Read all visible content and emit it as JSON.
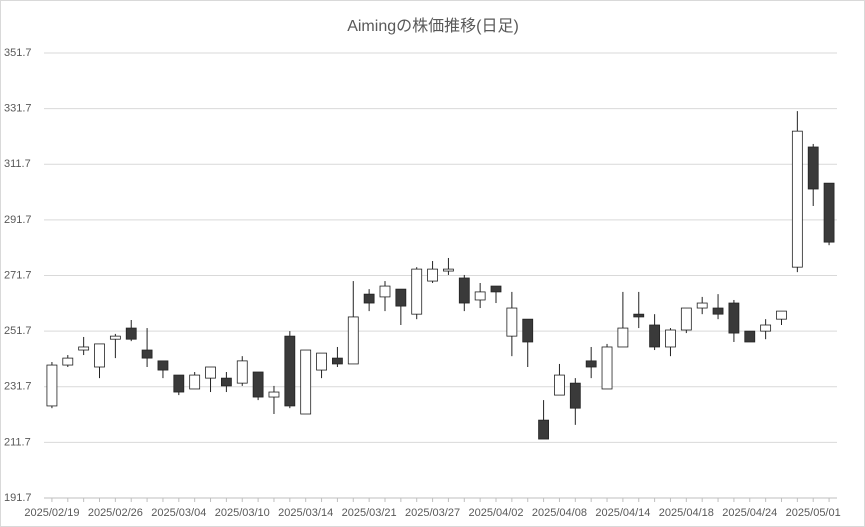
{
  "chart_data": {
    "type": "candlestick",
    "title": "Aimingの株価推移(日足)",
    "categories": [
      "2025/02/19",
      null,
      null,
      null,
      "2025/02/26",
      null,
      null,
      null,
      "2025/03/04",
      null,
      null,
      null,
      "2025/03/10",
      null,
      null,
      null,
      "2025/03/14",
      null,
      null,
      null,
      "2025/03/21",
      null,
      null,
      null,
      "2025/03/27",
      null,
      null,
      null,
      "2025/04/02",
      null,
      null,
      null,
      "2025/04/08",
      null,
      null,
      null,
      "2025/04/14",
      null,
      null,
      null,
      "2025/04/18",
      null,
      null,
      null,
      "2025/04/24",
      null,
      null,
      null,
      "2025/05/01",
      null
    ],
    "open": [
      224.8,
      239.5,
      244.9,
      238.8,
      248.8,
      252.8,
      244.9,
      241.0,
      235.9,
      230.9,
      234.8,
      234.8,
      233.0,
      237.0,
      228.0,
      249.9,
      221.9,
      237.7,
      242.0,
      239.9,
      265.0,
      264.0,
      266.8,
      257.8,
      269.7,
      273.3,
      270.8,
      262.9,
      267.9,
      249.9,
      256.0,
      219.7,
      228.7,
      233.0,
      241.0,
      230.9,
      246.0,
      257.8,
      253.9,
      246.0,
      252.1,
      260.0,
      260.0,
      261.8,
      251.7,
      251.7,
      256.0,
      274.7,
      317.9,
      304.9
    ],
    "high": [
      240.6,
      243.1,
      249.6,
      247.1,
      250.7,
      255.7,
      252.8,
      241.0,
      235.9,
      237.0,
      238.8,
      237.0,
      242.7,
      237.0,
      232.0,
      251.7,
      244.9,
      243.8,
      246.0,
      269.7,
      266.8,
      269.7,
      266.8,
      274.7,
      276.9,
      278.0,
      271.9,
      269.0,
      267.9,
      265.8,
      256.0,
      226.9,
      239.9,
      234.8,
      246.0,
      247.1,
      265.8,
      265.8,
      257.8,
      252.8,
      260.0,
      264.0,
      265.0,
      262.9,
      251.7,
      256.0,
      258.9,
      330.8,
      319.0,
      304.9
    ],
    "low": [
      224.0,
      238.8,
      243.1,
      234.8,
      242.0,
      248.1,
      238.8,
      234.8,
      228.7,
      230.9,
      229.8,
      229.8,
      232.0,
      226.9,
      221.9,
      224.0,
      221.9,
      234.8,
      238.8,
      239.9,
      258.9,
      258.9,
      253.9,
      256.0,
      269.0,
      271.9,
      258.9,
      260.0,
      261.8,
      242.7,
      238.8,
      212.9,
      228.7,
      218.0,
      234.8,
      230.9,
      246.0,
      252.8,
      244.9,
      242.7,
      251.0,
      257.8,
      256.0,
      247.8,
      247.8,
      248.8,
      253.9,
      272.9,
      296.7,
      282.6
    ],
    "close": [
      239.5,
      242.0,
      246.0,
      247.1,
      249.9,
      248.8,
      242.0,
      237.7,
      229.8,
      235.9,
      238.8,
      232.0,
      241.0,
      228.0,
      229.8,
      224.8,
      244.9,
      243.8,
      239.9,
      256.8,
      261.8,
      267.9,
      260.7,
      274.0,
      274.0,
      274.0,
      261.8,
      265.8,
      265.8,
      260.0,
      247.8,
      212.9,
      235.9,
      224.0,
      238.8,
      246.0,
      252.8,
      256.8,
      246.0,
      252.1,
      260.0,
      261.8,
      257.8,
      251.0,
      247.8,
      253.9,
      258.9,
      323.6,
      302.8,
      283.7
    ],
    "up_color": "#ffffff",
    "down_color": "#3a3a3a",
    "ylim": [
      191.7,
      351.7
    ],
    "yticks": [
      191.7,
      211.7,
      231.7,
      251.7,
      271.7,
      291.7,
      311.7,
      331.7,
      351.7
    ],
    "grid": true
  }
}
